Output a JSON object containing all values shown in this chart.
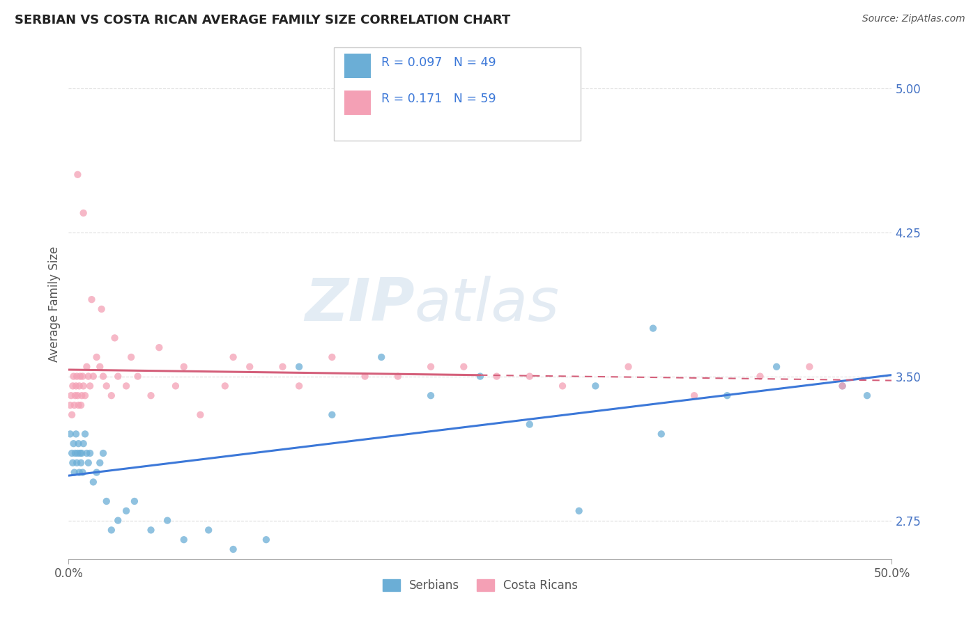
{
  "title": "SERBIAN VS COSTA RICAN AVERAGE FAMILY SIZE CORRELATION CHART",
  "source_text": "Source: ZipAtlas.com",
  "ylabel": "Average Family Size",
  "yticks": [
    2.75,
    3.5,
    4.25,
    5.0
  ],
  "xlim": [
    0.0,
    50.0
  ],
  "ylim": [
    2.55,
    5.2
  ],
  "serbian_color": "#6baed6",
  "serbian_line_color": "#3c78d8",
  "costarican_color": "#f4a0b5",
  "costarican_line_color": "#d45f7a",
  "serbian_R": 0.097,
  "serbian_N": 49,
  "costarican_R": 0.171,
  "costarican_N": 59,
  "watermark_zip": "ZIP",
  "watermark_atlas": "atlas",
  "legend_serbian_label": "Serbians",
  "legend_costarican_label": "Costa Ricans",
  "serbian_x": [
    0.1,
    0.2,
    0.25,
    0.3,
    0.35,
    0.4,
    0.45,
    0.5,
    0.55,
    0.6,
    0.65,
    0.7,
    0.75,
    0.8,
    0.85,
    0.9,
    1.0,
    1.1,
    1.2,
    1.3,
    1.5,
    1.7,
    1.9,
    2.1,
    2.3,
    2.6,
    3.0,
    3.5,
    4.0,
    5.0,
    6.0,
    7.0,
    8.5,
    10.0,
    12.0,
    14.0,
    16.0,
    19.0,
    22.0,
    25.0,
    28.0,
    32.0,
    36.0,
    40.0,
    43.0,
    47.0,
    48.5,
    31.0,
    35.5
  ],
  "serbian_y": [
    3.2,
    3.1,
    3.05,
    3.15,
    3.0,
    3.1,
    3.2,
    3.05,
    3.1,
    3.15,
    3.0,
    3.1,
    3.05,
    3.1,
    3.0,
    3.15,
    3.2,
    3.1,
    3.05,
    3.1,
    2.95,
    3.0,
    3.05,
    3.1,
    2.85,
    2.7,
    2.75,
    2.8,
    2.85,
    2.7,
    2.75,
    2.65,
    2.7,
    2.6,
    2.65,
    3.55,
    3.3,
    3.6,
    3.4,
    3.5,
    3.25,
    3.45,
    3.2,
    3.4,
    3.55,
    3.45,
    3.4,
    2.8,
    3.75
  ],
  "costarican_x": [
    0.1,
    0.15,
    0.2,
    0.25,
    0.3,
    0.35,
    0.4,
    0.45,
    0.5,
    0.55,
    0.6,
    0.65,
    0.7,
    0.75,
    0.8,
    0.85,
    0.9,
    1.0,
    1.1,
    1.2,
    1.3,
    1.5,
    1.7,
    1.9,
    2.1,
    2.3,
    2.6,
    3.0,
    3.5,
    4.2,
    5.0,
    6.5,
    8.0,
    9.5,
    11.0,
    14.0,
    18.0,
    22.0,
    26.0,
    30.0,
    34.0,
    38.0,
    42.0,
    45.0,
    47.0,
    0.55,
    0.9,
    1.4,
    2.0,
    2.8,
    3.8,
    5.5,
    7.0,
    10.0,
    13.0,
    16.0,
    20.0,
    24.0,
    28.0
  ],
  "costarican_y": [
    3.35,
    3.4,
    3.3,
    3.45,
    3.5,
    3.35,
    3.4,
    3.45,
    3.5,
    3.4,
    3.35,
    3.45,
    3.5,
    3.35,
    3.4,
    3.5,
    3.45,
    3.4,
    3.55,
    3.5,
    3.45,
    3.5,
    3.6,
    3.55,
    3.5,
    3.45,
    3.4,
    3.5,
    3.45,
    3.5,
    3.4,
    3.45,
    3.3,
    3.45,
    3.55,
    3.45,
    3.5,
    3.55,
    3.5,
    3.45,
    3.55,
    3.4,
    3.5,
    3.55,
    3.45,
    4.55,
    4.35,
    3.9,
    3.85,
    3.7,
    3.6,
    3.65,
    3.55,
    3.6,
    3.55,
    3.6,
    3.5,
    3.55,
    3.5
  ],
  "costarican_solid_x_end": 25.0,
  "grid_color": "#dddddd",
  "spine_color": "#aaaaaa"
}
